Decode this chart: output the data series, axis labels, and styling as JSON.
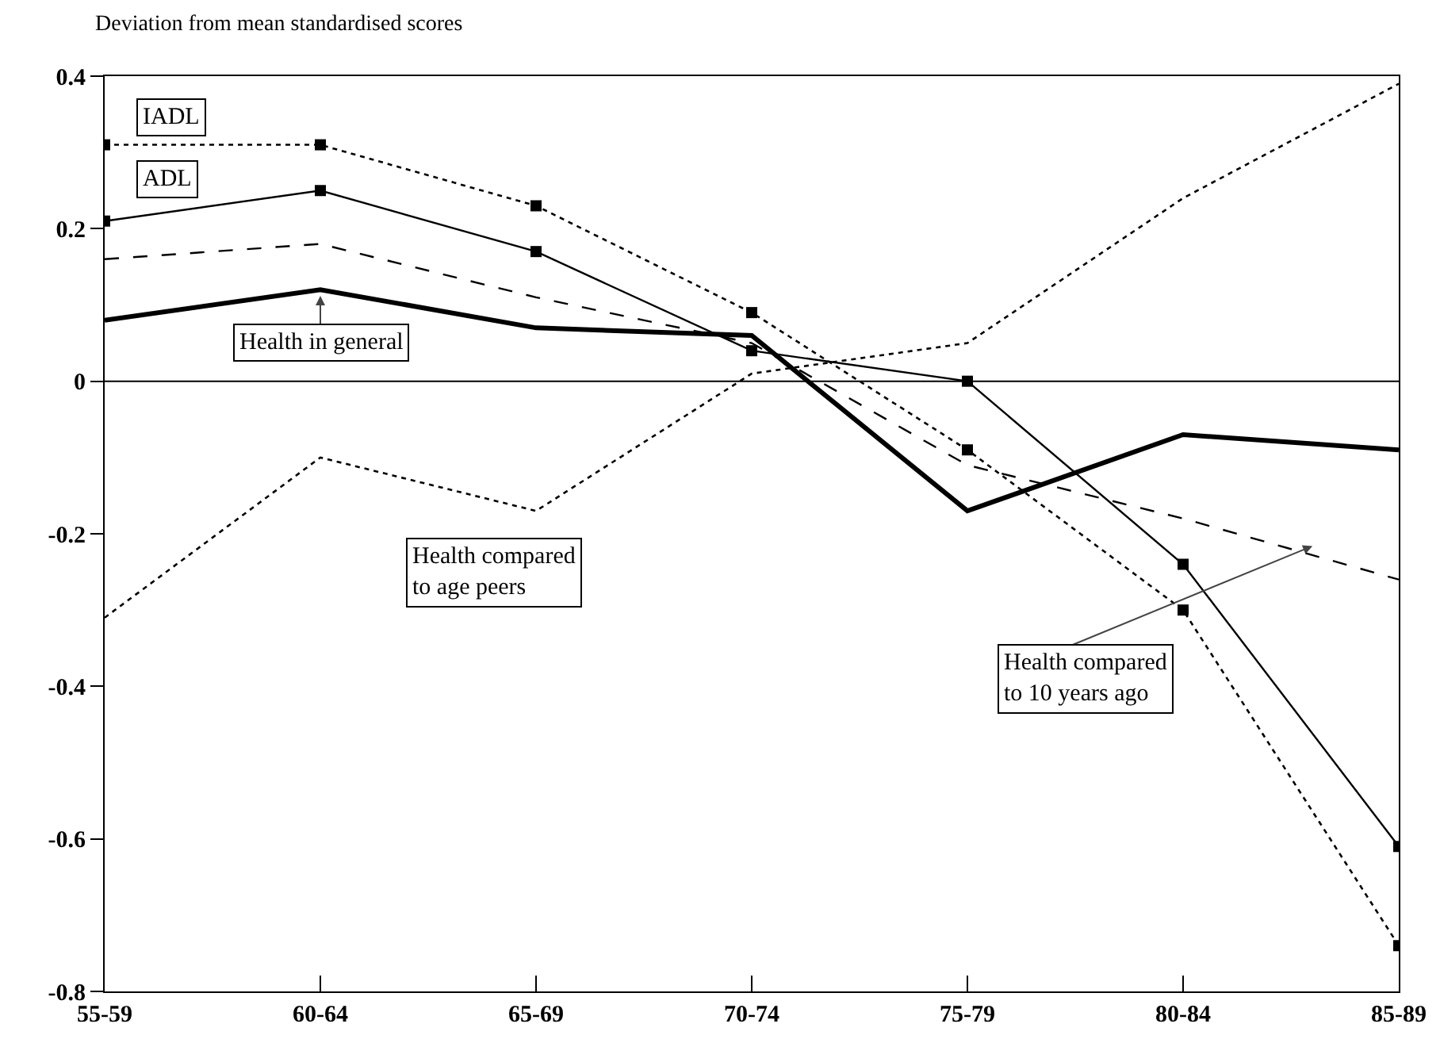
{
  "chart_data": {
    "type": "line",
    "ylabel": "Deviation from mean standardised scores",
    "categories": [
      "55-59",
      "60-64",
      "65-69",
      "70-74",
      "75-79",
      "80-84",
      "85-89"
    ],
    "series": [
      {
        "name": "IADL",
        "color": "#000000",
        "line_style": "dotted",
        "marker": "square",
        "values": [
          0.31,
          0.31,
          0.23,
          0.09,
          -0.09,
          -0.3,
          -0.74
        ]
      },
      {
        "name": "ADL",
        "color": "#000000",
        "line_style": "solid",
        "marker": "square",
        "values": [
          0.21,
          0.25,
          0.17,
          0.04,
          0.0,
          -0.24,
          -0.61
        ]
      },
      {
        "name": "Health in general",
        "color": "#000000",
        "line_style": "solid",
        "marker": "none",
        "values": [
          0.08,
          0.12,
          0.07,
          0.06,
          -0.17,
          -0.07,
          -0.09
        ]
      },
      {
        "name": "Health compared to 10 years ago",
        "color": "#000000",
        "line_style": "dashed",
        "marker": "none",
        "values": [
          0.16,
          0.18,
          0.11,
          0.05,
          -0.11,
          -0.18,
          -0.26
        ]
      },
      {
        "name": "Health compared to age peers",
        "color": "#000000",
        "line_style": "dotted",
        "marker": "none",
        "values": [
          -0.31,
          -0.1,
          -0.17,
          0.01,
          0.05,
          0.24,
          0.39
        ]
      }
    ],
    "ylim": [
      -0.8,
      0.4
    ],
    "yticks": [
      -0.8,
      -0.6,
      -0.4,
      -0.2,
      0,
      0.2,
      0.4
    ],
    "ref_lines": [
      {
        "axis": "y",
        "value": 0,
        "color": "#000000"
      }
    ],
    "grid": false,
    "legend": false
  }
}
